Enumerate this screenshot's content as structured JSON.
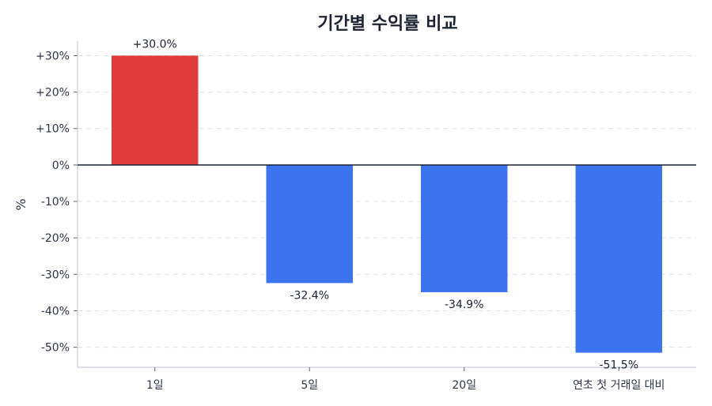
{
  "chart_data": {
    "type": "bar",
    "title": "기간별 수익률 비교",
    "xlabel": "",
    "ylabel": "%",
    "categories": [
      "1일",
      "5일",
      "20일",
      "연초 첫 거래일 대비"
    ],
    "values": [
      30.0,
      -32.4,
      -34.9,
      -51.5
    ],
    "value_labels": [
      "+30.0%",
      "-32.4%",
      "-34.9%",
      "-51.5%"
    ],
    "ylim": [
      -55.5,
      34
    ],
    "yticks": [
      30,
      20,
      10,
      0,
      -10,
      -20,
      -30,
      -40,
      -50
    ],
    "ytick_labels": [
      "+30%",
      "+20%",
      "+10%",
      "0%",
      "-10%",
      "-20%",
      "-30%",
      "-40%",
      "-50%"
    ],
    "grid": true,
    "colors": {
      "positive": "#e03c3c",
      "negative": "#3c74ef",
      "zero_line": "#1b2231",
      "grid": "#dde1e7",
      "axis": "#c8ccd2"
    }
  }
}
